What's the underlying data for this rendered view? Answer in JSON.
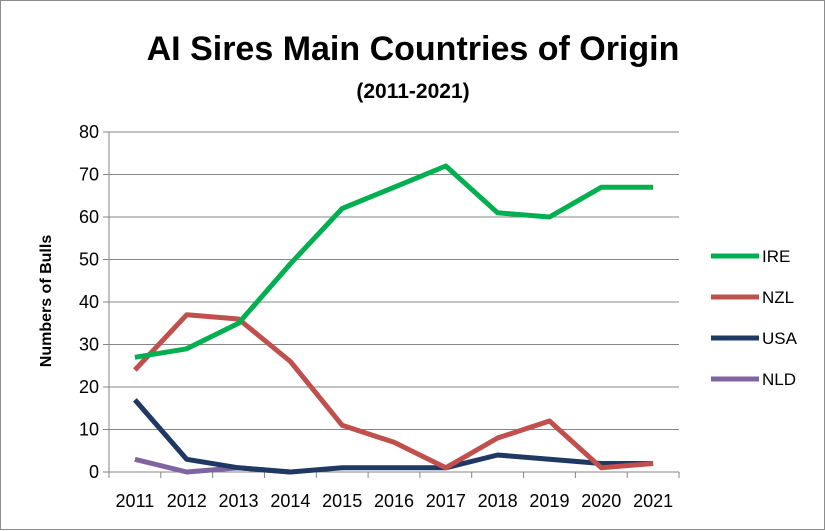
{
  "chart_data": {
    "type": "line",
    "title": "AI Sires Main Countries of Origin",
    "subtitle": "(2011-2021)",
    "xlabel": "",
    "ylabel": "Numbers of Bulls",
    "categories": [
      "2011",
      "2012",
      "2013",
      "2014",
      "2015",
      "2016",
      "2017",
      "2018",
      "2019",
      "2020",
      "2021"
    ],
    "ylim": [
      0,
      80
    ],
    "yticks": [
      0,
      10,
      20,
      30,
      40,
      50,
      60,
      70,
      80
    ],
    "grid": true,
    "legend": "right",
    "series": [
      {
        "name": "IRE",
        "color": "#00b050",
        "values": [
          27,
          29,
          35,
          49,
          62,
          67,
          72,
          61,
          60,
          67,
          67
        ]
      },
      {
        "name": "NZL",
        "color": "#c0504d",
        "values": [
          24,
          37,
          36,
          26,
          11,
          7,
          1,
          8,
          12,
          1,
          2
        ]
      },
      {
        "name": "USA",
        "color": "#1f3864",
        "values": [
          17,
          3,
          1,
          0,
          1,
          1,
          1,
          4,
          3,
          2,
          2
        ]
      },
      {
        "name": "NLD",
        "color": "#8064a2",
        "values": [
          3,
          0,
          1,
          0,
          null,
          null,
          null,
          1,
          null,
          null,
          null
        ]
      }
    ]
  }
}
